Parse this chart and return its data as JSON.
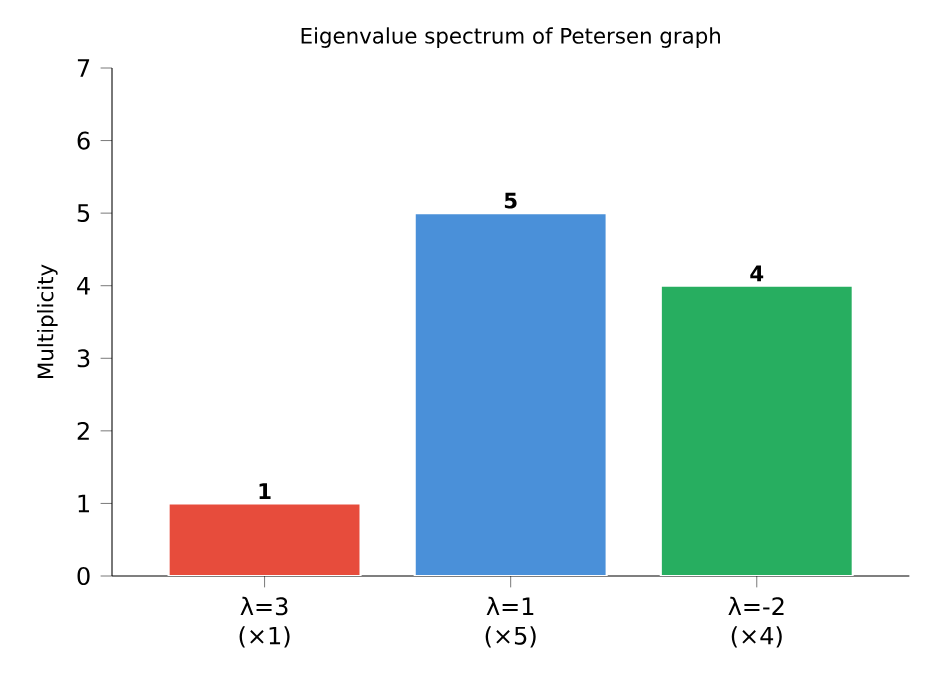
{
  "chart_data": {
    "type": "bar",
    "title": "Eigenvalue spectrum of Petersen graph",
    "ylabel": "Multiplicity",
    "categories": [
      "λ=3 (×1)",
      "λ=1 (×5)",
      "λ=-2 (×4)"
    ],
    "values": [
      1,
      5,
      4
    ],
    "colors": [
      "#e74c3c",
      "#4a90d9",
      "#27ae60"
    ],
    "ylim": [
      0,
      7
    ],
    "yticks": [
      0,
      1,
      2,
      3,
      4,
      5,
      6,
      7
    ],
    "data_labels": true
  }
}
